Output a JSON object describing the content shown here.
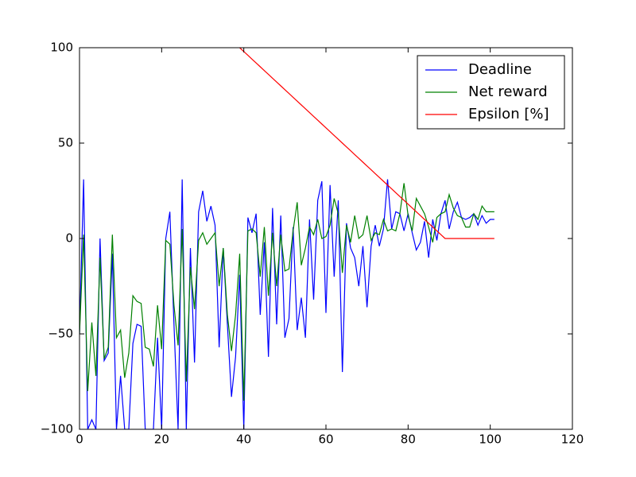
{
  "chart_data": {
    "type": "line",
    "x": [
      0,
      1,
      2,
      3,
      4,
      5,
      6,
      7,
      8,
      9,
      10,
      11,
      12,
      13,
      14,
      15,
      16,
      17,
      18,
      19,
      20,
      21,
      22,
      23,
      24,
      25,
      26,
      27,
      28,
      29,
      30,
      31,
      32,
      33,
      34,
      35,
      36,
      37,
      38,
      39,
      40,
      41,
      42,
      43,
      44,
      45,
      46,
      47,
      48,
      49,
      50,
      51,
      52,
      53,
      54,
      55,
      56,
      57,
      58,
      59,
      60,
      61,
      62,
      63,
      64,
      65,
      66,
      67,
      68,
      69,
      70,
      71,
      72,
      73,
      74,
      75,
      76,
      77,
      78,
      79,
      80,
      81,
      82,
      83,
      84,
      85,
      86,
      87,
      88,
      89,
      90,
      91,
      92,
      93,
      94,
      95,
      96,
      97,
      98,
      99,
      100,
      101
    ],
    "series": [
      {
        "name": "Deadline",
        "color": "#0000ff",
        "values": [
          -50,
          31,
          -100,
          -95,
          -100,
          0,
          -64,
          -60,
          -8,
          -100,
          -72,
          -100,
          -100,
          -55,
          -45,
          -46,
          -100,
          -100,
          -100,
          -52,
          -100,
          0,
          14,
          -45,
          -100,
          31,
          -100,
          -5,
          -65,
          14,
          25,
          9,
          17,
          7,
          -57,
          -5,
          -45,
          -83,
          -62,
          -19,
          -100,
          11,
          3,
          13,
          -40,
          -2,
          -62,
          16,
          -45,
          12,
          -52,
          -42,
          6,
          -48,
          -31,
          -52,
          10,
          -32,
          20,
          30,
          -39,
          28,
          -20,
          20,
          -70,
          8,
          -5,
          -10,
          -25,
          -4,
          -36,
          -4,
          7,
          -4,
          5,
          31,
          5,
          14,
          13,
          4,
          13,
          3,
          -6,
          -2,
          9,
          -10,
          10,
          -1,
          13,
          20,
          5,
          14,
          19,
          11,
          10,
          11,
          13,
          7,
          12,
          8,
          10,
          10
        ]
      },
      {
        "name": "Net reward",
        "color": "#008000",
        "values": [
          -50,
          2,
          -80,
          -44,
          -72,
          -10,
          -63,
          -57,
          2,
          -52,
          -48,
          -73,
          -60,
          -30,
          -33,
          -34,
          -57,
          -58,
          -67,
          -35,
          -58,
          -1,
          -3,
          -35,
          -56,
          5,
          -75,
          -15,
          -37,
          -1,
          3,
          -3,
          0,
          3,
          -25,
          -5,
          -40,
          -59,
          -40,
          -8,
          -85,
          4,
          5,
          3,
          -20,
          6,
          -30,
          3,
          -25,
          2,
          -17,
          -16,
          4,
          19,
          -14,
          -5,
          6,
          2,
          10,
          0,
          1,
          7,
          21,
          13,
          -18,
          7,
          -2,
          12,
          0,
          2,
          12,
          -1,
          3,
          2,
          10,
          4,
          5,
          4,
          13,
          29,
          12,
          4,
          21,
          17,
          13,
          6,
          -2,
          11,
          13,
          14,
          23,
          16,
          12,
          11,
          6,
          6,
          13,
          10,
          17,
          14,
          14,
          14
        ]
      },
      {
        "name": "Epsilon [%]",
        "color": "#ff0000",
        "values": [
          null,
          null,
          null,
          null,
          null,
          null,
          null,
          null,
          null,
          null,
          null,
          null,
          null,
          null,
          null,
          null,
          null,
          null,
          null,
          null,
          null,
          null,
          null,
          null,
          null,
          null,
          null,
          null,
          null,
          null,
          null,
          null,
          null,
          null,
          null,
          null,
          null,
          null,
          null,
          100,
          98,
          96,
          94,
          92,
          90,
          88,
          86,
          84,
          82,
          80,
          78,
          76,
          74,
          72,
          70,
          68,
          66,
          64,
          62,
          60,
          58,
          56,
          54,
          52,
          50,
          48,
          46,
          44,
          42,
          40,
          38,
          36,
          34,
          32,
          30,
          28,
          26,
          24,
          22,
          20,
          18,
          16,
          14,
          12,
          10,
          8,
          6,
          4,
          2,
          0,
          0,
          0,
          0,
          0,
          0,
          0,
          0,
          0,
          0,
          0,
          0,
          0
        ]
      }
    ],
    "xlim": [
      0,
      120
    ],
    "xticks": [
      0,
      20,
      40,
      60,
      80,
      100,
      120
    ],
    "ylim": [
      -100,
      100
    ],
    "yticks": [
      {
        "value": -100,
        "label": "−100"
      },
      {
        "value": -50,
        "label": "−50"
      },
      0,
      50,
      100
    ],
    "legend": "upper right"
  }
}
